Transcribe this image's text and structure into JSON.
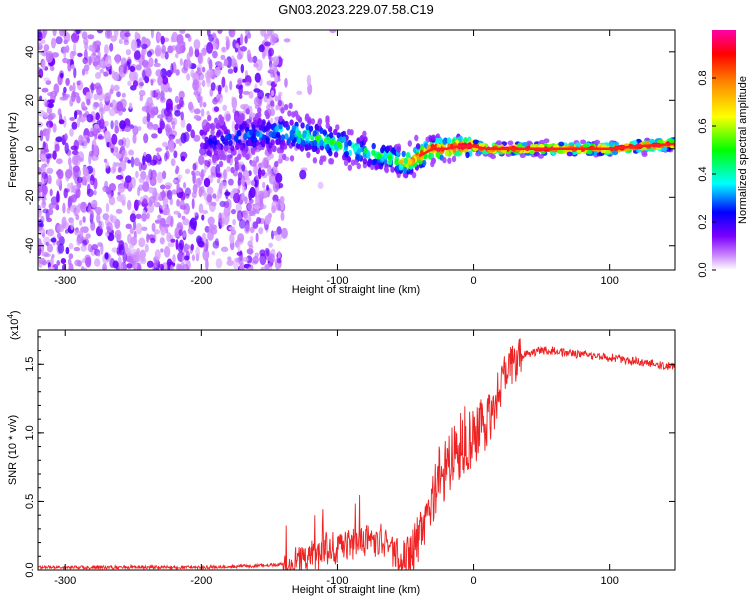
{
  "title": "GN03.2023.229.07.58.C19",
  "chart_data": [
    {
      "type": "heatmap",
      "xlabel": "Height of straight line (km)",
      "ylabel": "Frequency (Hz)",
      "xlim": [
        -320,
        148
      ],
      "ylim": [
        -50,
        49
      ],
      "xticks": [
        -300,
        -200,
        -100,
        0,
        100
      ],
      "yticks": [
        -40,
        -20,
        0,
        20,
        40
      ],
      "colorbar": {
        "label": "Normalized spectral amplitude",
        "range": [
          0,
          1
        ],
        "ticks": [
          0.0,
          0.2,
          0.4,
          0.6,
          0.8
        ],
        "colors": [
          "#ffffff",
          "#7b00ff",
          "#0000ff",
          "#00ffff",
          "#00ff00",
          "#ffff00",
          "#ff8800",
          "#ff0000",
          "#ff00aa"
        ]
      },
      "trace": {
        "x": [
          -200,
          -180,
          -160,
          -140,
          -120,
          -100,
          -80,
          -60,
          -50,
          -40,
          -30,
          -20,
          -10,
          0,
          10,
          20,
          40,
          60,
          80,
          100,
          120,
          148
        ],
        "center_hz": [
          3,
          4,
          6,
          7,
          5,
          2,
          -1,
          -4,
          -6,
          -3,
          0,
          0,
          1,
          1,
          0,
          0,
          0,
          0,
          0,
          0,
          1,
          2
        ],
        "peak_amplitude": [
          0.2,
          0.25,
          0.3,
          0.35,
          0.45,
          0.45,
          0.45,
          0.5,
          0.7,
          0.8,
          0.9,
          0.95,
          0.98,
          0.98,
          0.98,
          0.98,
          0.98,
          0.98,
          0.98,
          0.98,
          0.98,
          0.98
        ]
      }
    },
    {
      "type": "line",
      "xlabel": "Height of straight line (km)",
      "ylabel": "SNR (10 * v/v)",
      "multiplier": "(x10^4)",
      "multiplier_base": "(x10",
      "multiplier_exp": "4",
      "multiplier_close": ")",
      "xlim": [
        -320,
        148
      ],
      "ylim": [
        0,
        1.75
      ],
      "xticks": [
        -300,
        -200,
        -100,
        0,
        100
      ],
      "yticks": [
        0.0,
        0.5,
        1.0,
        1.5
      ],
      "ytick_labels": [
        "0.0",
        "0.5",
        "1.0",
        "1.5"
      ],
      "color": "#ee2222",
      "series": [
        {
          "x": [
            -320,
            -300,
            -250,
            -200,
            -160,
            -140,
            -125,
            -115,
            -105,
            -95,
            -85,
            -75,
            -65,
            -58,
            -50,
            -45,
            -40,
            -35,
            -30,
            -25,
            -20,
            -15,
            -10,
            -5,
            0,
            5,
            10,
            15,
            20,
            25,
            30,
            40,
            50,
            60,
            70,
            80,
            100,
            120,
            148
          ],
          "y": [
            0.02,
            0.02,
            0.02,
            0.02,
            0.03,
            0.04,
            0.07,
            0.1,
            0.15,
            0.18,
            0.2,
            0.22,
            0.2,
            0.12,
            0.1,
            0.15,
            0.25,
            0.4,
            0.55,
            0.7,
            0.75,
            0.85,
            0.9,
            0.95,
            1.0,
            1.05,
            1.1,
            1.2,
            1.35,
            1.45,
            1.52,
            1.58,
            1.6,
            1.6,
            1.58,
            1.57,
            1.55,
            1.52,
            1.48
          ]
        }
      ]
    }
  ]
}
